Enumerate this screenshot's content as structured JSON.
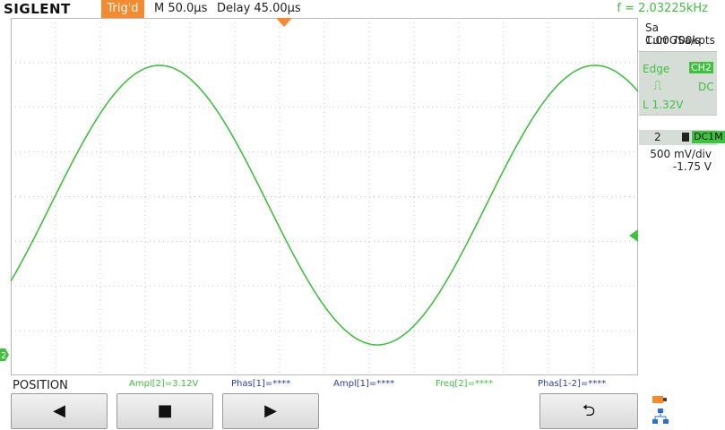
{
  "header": {
    "brand": "SIGLENT",
    "trig_state": "Trig'd",
    "timebase": "M 50.0µs",
    "delay": "Delay 45.00µs",
    "frequency": "f = 2.03225kHz"
  },
  "acquisition": {
    "sample_rate": "Sa 1.00GSa/s",
    "memory": "Curr 700kpts"
  },
  "trigger": {
    "type": "Edge",
    "source": "CH2",
    "coupling": "DC",
    "level": "L  1.32V",
    "slope_icon": "falling-edge-icon"
  },
  "channel": {
    "number": "2",
    "coupling": "DC1M",
    "vdiv": "500 mV/div",
    "offset": "-1.75 V",
    "color": "#3ec33e"
  },
  "channel_marker": "2",
  "measurements": [
    {
      "text": "Ampl[2]=3.12V",
      "color": "green"
    },
    {
      "text": "Phas[1]=****",
      "color": "blue"
    },
    {
      "text": "Ampl[1]=****",
      "color": "blue"
    },
    {
      "text": "Freq[2]=****",
      "color": "green"
    },
    {
      "text": "Phas[1-2]=****",
      "color": "blue"
    }
  ],
  "softkeys": {
    "menu_title": "POSITION",
    "left": "◀",
    "stop": "■",
    "right": "▶",
    "back": "⮌"
  },
  "waveform": {
    "type": "sine",
    "color": "#3ec33e",
    "cycles_visible": 1.4
  },
  "colors": {
    "accent_orange": "#f58a2e",
    "trace_green": "#3ec33e",
    "meas_blue": "#2a3ca8"
  }
}
